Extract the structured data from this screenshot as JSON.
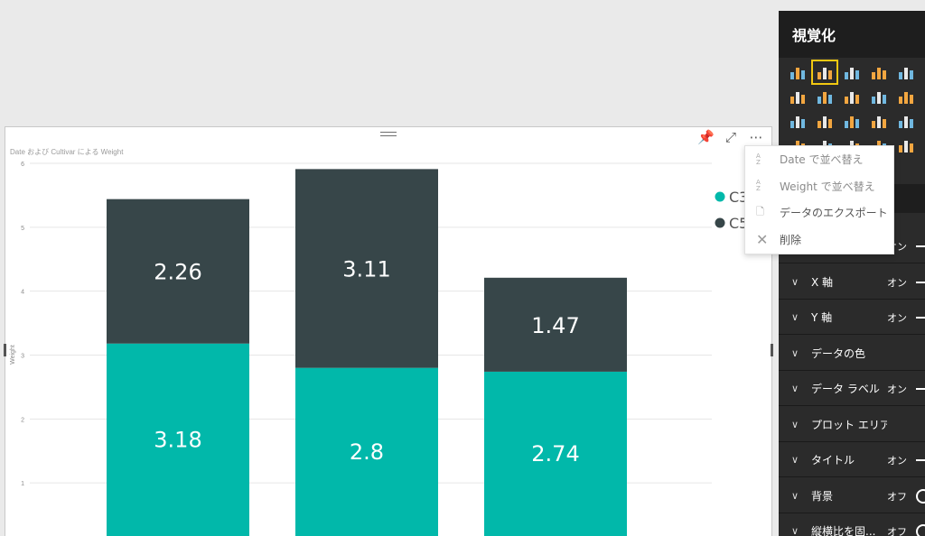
{
  "visual": {
    "title": "Date および Cultivar による Weight",
    "y_axis_label": "Weight",
    "legend": [
      {
        "label": "C3",
        "color": "#01b8aa"
      },
      {
        "label": "C5",
        "color": "#374649"
      }
    ],
    "icons": [
      "pin-icon",
      "focus-mode-icon",
      "more-options-icon"
    ]
  },
  "context_menu": {
    "items": [
      {
        "label": "Date で並べ替え",
        "icon": "sort-icon"
      },
      {
        "label": "Weight で並べ替え",
        "icon": "sort-icon"
      },
      {
        "label": "データのエクスポート",
        "icon": "export-icon"
      },
      {
        "label": "削除",
        "icon": "close-icon"
      }
    ]
  },
  "pane": {
    "title": "視覚化",
    "format_rows": [
      {
        "label": "",
        "state": "オン",
        "toggle": "on"
      },
      {
        "label": "X 軸",
        "state": "オン",
        "toggle": "on"
      },
      {
        "label": "Y 軸",
        "state": "オン",
        "toggle": "on"
      },
      {
        "label": "データの色",
        "state": "",
        "toggle": ""
      },
      {
        "label": "データ ラベル",
        "state": "オン",
        "toggle": "on"
      },
      {
        "label": "プロット エリア",
        "state": "",
        "toggle": ""
      },
      {
        "label": "タイトル",
        "state": "オン",
        "toggle": "on"
      },
      {
        "label": "背景",
        "state": "オフ",
        "toggle": "off"
      },
      {
        "label": "縦横比を固...",
        "state": "オフ",
        "toggle": "off"
      }
    ]
  },
  "chart_data": {
    "type": "bar",
    "stacked": true,
    "categories": [
      "",
      "",
      ""
    ],
    "series": [
      {
        "name": "C3",
        "color": "#01b8aa",
        "values": [
          3.18,
          2.8,
          2.74
        ]
      },
      {
        "name": "C5",
        "color": "#374649",
        "values": [
          2.26,
          3.11,
          1.47
        ]
      }
    ],
    "ylabel": "Weight",
    "ylim": [
      0,
      6
    ],
    "yticks": [
      1,
      2,
      3,
      4,
      5,
      6
    ],
    "data_labels": true,
    "grid": true,
    "legend_position": "right"
  }
}
